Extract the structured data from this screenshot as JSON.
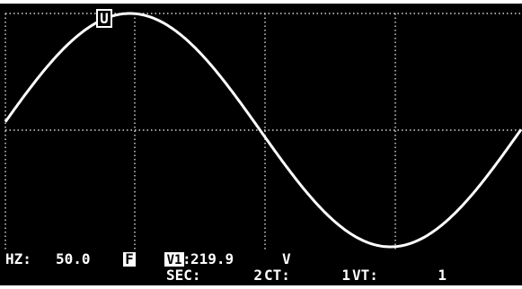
{
  "screen": {
    "cursor_label": "U",
    "readout": {
      "frequency_label": "HZ:",
      "frequency_value": "50.0",
      "mode_badge": "F",
      "channel_badge": "V1",
      "channel_separator": ":",
      "channel_value": "219.9",
      "channel_unit": "V",
      "sec_label": "SEC:",
      "sec_value": "2",
      "ct_label": "CT:",
      "ct_value": "1",
      "vt_label": "VT:",
      "vt_value": "1"
    }
  }
}
